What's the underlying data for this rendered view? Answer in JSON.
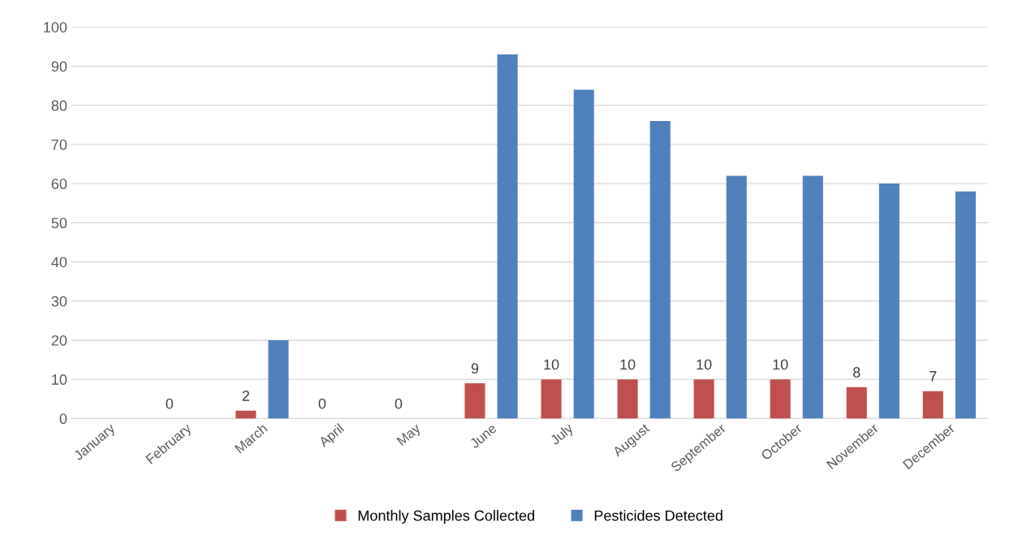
{
  "chart_data": {
    "type": "bar",
    "categories": [
      "January",
      "February",
      "March",
      "April",
      "May",
      "June",
      "July",
      "August",
      "September",
      "October",
      "November",
      "December"
    ],
    "series": [
      {
        "name": "Monthly Samples Collected",
        "color": "#c0504d",
        "values": [
          null,
          0,
          2,
          0,
          0,
          9,
          10,
          10,
          10,
          10,
          8,
          7
        ],
        "value_labels": [
          null,
          "0",
          "2",
          "0",
          "0",
          "9",
          "10",
          "10",
          "10",
          "10",
          "8",
          "7"
        ]
      },
      {
        "name": "Pesticides Detected",
        "color": "#4f81bd",
        "values": [
          null,
          null,
          20,
          null,
          null,
          93,
          84,
          76,
          62,
          62,
          60,
          58
        ]
      }
    ],
    "ylim": [
      0,
      100
    ],
    "yticks": [
      0,
      10,
      20,
      30,
      40,
      50,
      60,
      70,
      80,
      90,
      100
    ],
    "grid": "y",
    "legend": "bottom"
  }
}
